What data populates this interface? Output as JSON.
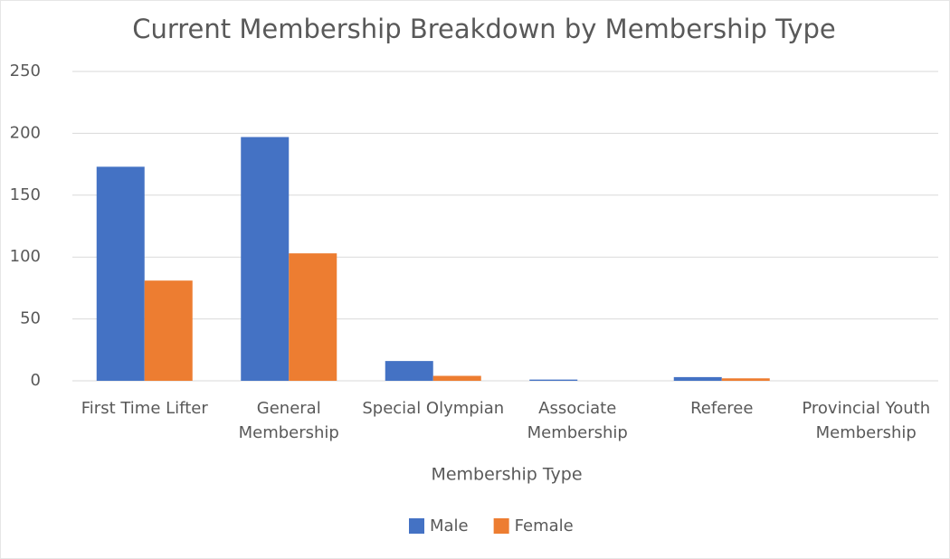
{
  "chart_data": {
    "type": "bar",
    "title": "Current Membership Breakdown by Membership Type",
    "x_label": "Membership Type",
    "categories": [
      "First Time Lifter",
      "General Membership",
      "Special Olympian",
      "Associate Membership",
      "Referee",
      "Provincial Youth Membership"
    ],
    "series": [
      {
        "name": "Male",
        "color": "#4472c4",
        "values": [
          173,
          197,
          16,
          1,
          3,
          0
        ]
      },
      {
        "name": "Female",
        "color": "#ed7d31",
        "values": [
          81,
          103,
          4,
          0,
          2,
          0
        ]
      }
    ],
    "ylim": [
      0,
      250
    ],
    "yticks": [
      0,
      50,
      100,
      150,
      200,
      250
    ],
    "grid": true,
    "legend": "bottom"
  }
}
